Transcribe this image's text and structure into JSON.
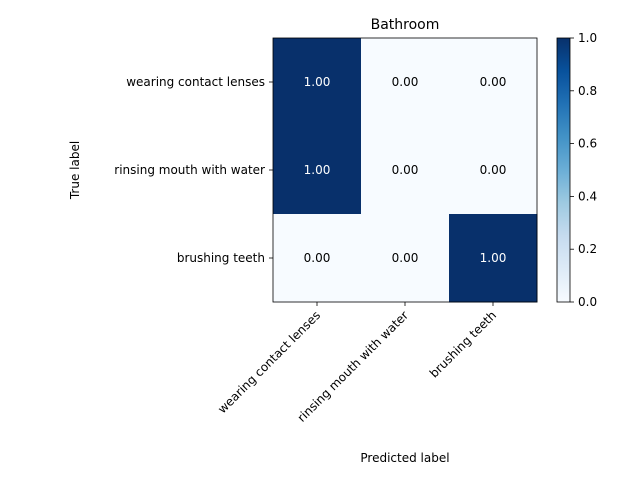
{
  "chart_data": {
    "type": "heatmap",
    "title": "Bathroom",
    "xlabel": "Predicted label",
    "ylabel": "True label",
    "x_categories": [
      "wearing contact lenses",
      "rinsing mouth with water",
      "brushing teeth"
    ],
    "y_categories": [
      "wearing contact lenses",
      "rinsing mouth with water",
      "brushing teeth"
    ],
    "values": [
      [
        1.0,
        0.0,
        0.0
      ],
      [
        1.0,
        0.0,
        0.0
      ],
      [
        0.0,
        0.0,
        1.0
      ]
    ],
    "cell_labels": [
      [
        "1.00",
        "0.00",
        "0.00"
      ],
      [
        "1.00",
        "0.00",
        "0.00"
      ],
      [
        "0.00",
        "0.00",
        "1.00"
      ]
    ],
    "colormap": "Blues",
    "color_low": "#f7fbff",
    "color_high": "#08306b",
    "colorbar": {
      "range": [
        0.0,
        1.0
      ],
      "ticks": [
        0.0,
        0.2,
        0.4,
        0.6,
        0.8,
        1.0
      ],
      "tick_labels": [
        "0.0",
        "0.2",
        "0.4",
        "0.6",
        "0.8",
        "1.0"
      ]
    }
  }
}
